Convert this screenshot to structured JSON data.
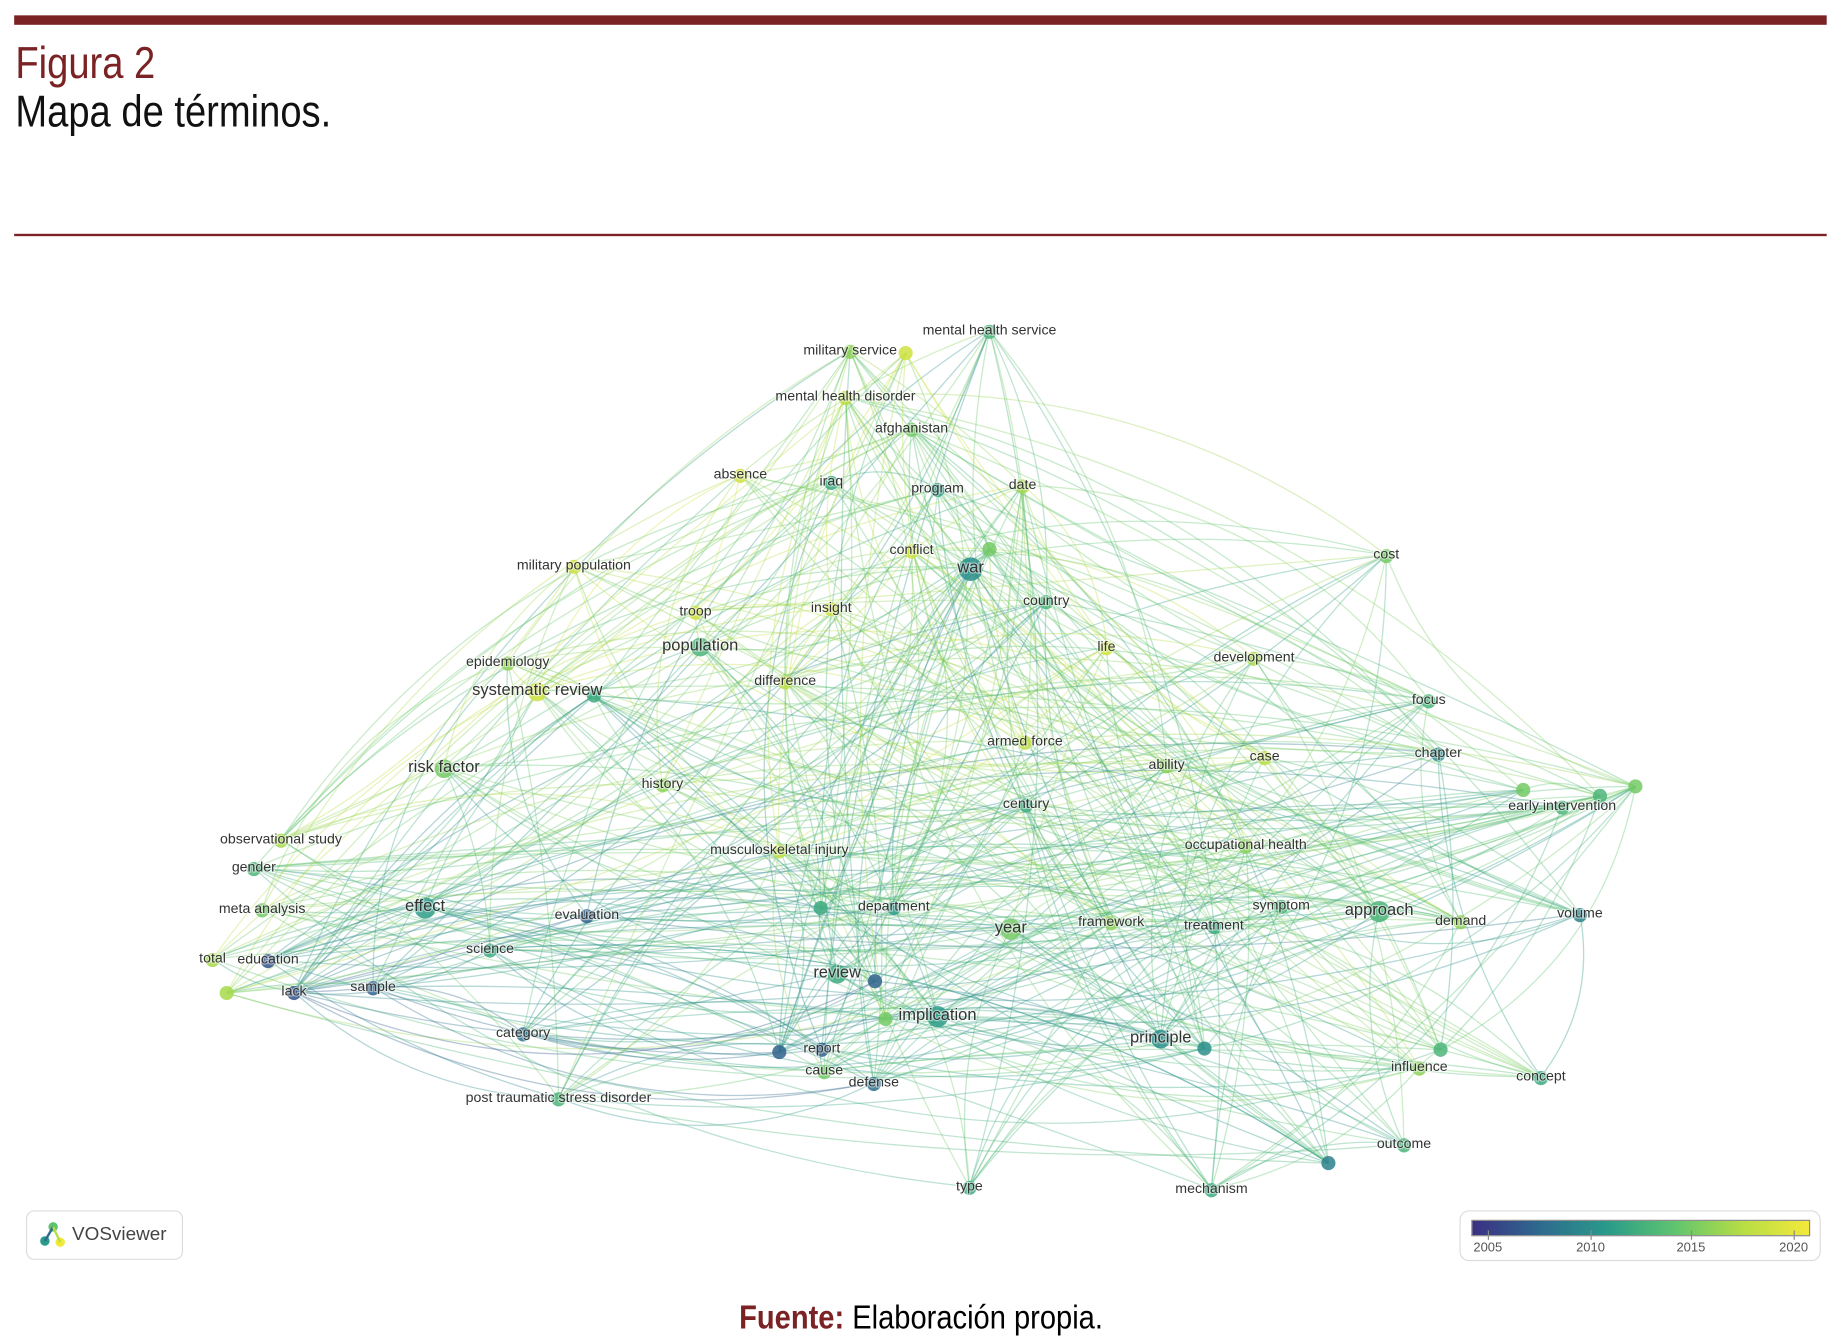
{
  "figure": {
    "label": "Figura 2",
    "title": "Mapa de términos."
  },
  "caption": {
    "source_label": "Fuente:",
    "source_text": " Elaboración propia."
  },
  "logo": {
    "text": "VOSviewer"
  },
  "chart_data": {
    "type": "network",
    "color_scale": {
      "ticks": [
        "2005",
        "2010",
        "2015",
        "2020"
      ],
      "range": [
        2004,
        2021
      ],
      "colors": [
        "#3b2f83",
        "#2e6a8e",
        "#2a9a8a",
        "#5fc46f",
        "#b6dd45",
        "#f3e93a"
      ]
    },
    "terms": [
      {
        "label": "military service",
        "year": 2016
      },
      {
        "label": "mental health service",
        "year": 2013
      },
      {
        "label": "mental health disorder",
        "year": 2018
      },
      {
        "label": "afghanistan",
        "year": 2015
      },
      {
        "label": "absence",
        "year": 2019
      },
      {
        "label": "iraq",
        "year": 2012
      },
      {
        "label": "program",
        "year": 2011
      },
      {
        "label": "date",
        "year": 2017
      },
      {
        "label": "conflict",
        "year": 2019
      },
      {
        "label": "war",
        "year": 2010
      },
      {
        "label": "cost",
        "year": 2015
      },
      {
        "label": "military population",
        "year": 2019
      },
      {
        "label": "troop",
        "year": 2019
      },
      {
        "label": "insight",
        "year": 2019
      },
      {
        "label": "country",
        "year": 2013
      },
      {
        "label": "population",
        "year": 2013
      },
      {
        "label": "epidemiology",
        "year": 2016
      },
      {
        "label": "systematic review",
        "year": 2019
      },
      {
        "label": "difference",
        "year": 2018
      },
      {
        "label": "life",
        "year": 2019
      },
      {
        "label": "development",
        "year": 2017
      },
      {
        "label": "focus",
        "year": 2013
      },
      {
        "label": "armed force",
        "year": 2018
      },
      {
        "label": "ability",
        "year": 2016
      },
      {
        "label": "case",
        "year": 2018
      },
      {
        "label": "chapter",
        "year": 2010
      },
      {
        "label": "risk factor",
        "year": 2015
      },
      {
        "label": "history",
        "year": 2016
      },
      {
        "label": "century",
        "year": 2012
      },
      {
        "label": "early intervention",
        "year": 2013
      },
      {
        "label": "observational study",
        "year": 2017
      },
      {
        "label": "musculoskeletal injury",
        "year": 2018
      },
      {
        "label": "occupational health",
        "year": 2016
      },
      {
        "label": "gender",
        "year": 2013
      },
      {
        "label": "effect",
        "year": 2011
      },
      {
        "label": "meta analysis",
        "year": 2015
      },
      {
        "label": "evaluation",
        "year": 2007
      },
      {
        "label": "department",
        "year": 2011
      },
      {
        "label": "year",
        "year": 2015
      },
      {
        "label": "framework",
        "year": 2016
      },
      {
        "label": "symptom",
        "year": 2013
      },
      {
        "label": "treatment",
        "year": 2012
      },
      {
        "label": "approach",
        "year": 2013
      },
      {
        "label": "demand",
        "year": 2016
      },
      {
        "label": "volume",
        "year": 2009
      },
      {
        "label": "total",
        "year": 2017
      },
      {
        "label": "education",
        "year": 2006
      },
      {
        "label": "science",
        "year": 2012
      },
      {
        "label": "lack",
        "year": 2006
      },
      {
        "label": "sample",
        "year": 2007
      },
      {
        "label": "review",
        "year": 2012
      },
      {
        "label": "implication",
        "year": 2011
      },
      {
        "label": "category",
        "year": 2008
      },
      {
        "label": "report",
        "year": 2007
      },
      {
        "label": "cause",
        "year": 2015
      },
      {
        "label": "defense",
        "year": 2008
      },
      {
        "label": "principle",
        "year": 2010
      },
      {
        "label": "influence",
        "year": 2016
      },
      {
        "label": "concept",
        "year": 2012
      },
      {
        "label": "post traumatic stress disorder",
        "year": 2013
      },
      {
        "label": "outcome",
        "year": 2013
      },
      {
        "label": "type",
        "year": 2012
      },
      {
        "label": "mechanism",
        "year": 2012
      }
    ],
    "unlabeled_term_years": [
      2015,
      2015,
      2013,
      2015,
      2017,
      2009,
      2012,
      2010,
      2013,
      2015,
      2007,
      2007,
      2012,
      2019
    ]
  }
}
